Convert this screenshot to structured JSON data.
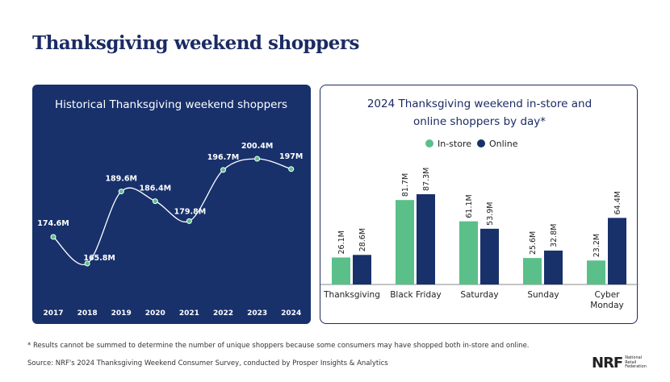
{
  "title": "Thanksgiving weekend shoppers",
  "chart_data": [
    {
      "type": "line",
      "title": "Historical Thanksgiving weekend shoppers",
      "categories": [
        "2017",
        "2018",
        "2019",
        "2020",
        "2021",
        "2022",
        "2023",
        "2024"
      ],
      "values": [
        174.6,
        165.8,
        189.6,
        186.4,
        179.8,
        196.7,
        200.4,
        197
      ],
      "data_labels": [
        "174.6M",
        "165.8M",
        "189.6M",
        "186.4M",
        "179.8M",
        "196.7M",
        "200.4M",
        "197M"
      ],
      "grid": false,
      "colors": {
        "background": "#18316b",
        "line": "#ffffff",
        "marker": "#5bbf8a"
      }
    },
    {
      "type": "bar",
      "title": "2024 Thanksgiving weekend in-store and online shoppers by day*",
      "categories": [
        "Thanksgiving",
        "Black Friday",
        "Saturday",
        "Sunday",
        "Cyber Monday"
      ],
      "series": [
        {
          "name": "In-store",
          "values": [
            26.1,
            81.7,
            61.1,
            25.6,
            23.2
          ],
          "labels": [
            "26.1M",
            "81.7M",
            "61.1M",
            "25.6M",
            "23.2M"
          ],
          "color": "#5bbf8a"
        },
        {
          "name": "Online",
          "values": [
            28.6,
            87.3,
            53.9,
            32.8,
            64.4
          ],
          "labels": [
            "28.6M",
            "87.3M",
            "53.9M",
            "32.8M",
            "64.4M"
          ],
          "color": "#18316b"
        }
      ],
      "legend": "top",
      "grid": false
    }
  ],
  "footnote": "* Results cannot be summed to determine the number of unique shoppers because some consumers may have shopped both in-store and online.",
  "source": "Source: NRF's 2024 Thanksgiving Weekend Consumer Survey, conducted by Prosper Insights & Analytics",
  "logo": {
    "mark": "NRF",
    "text": [
      "National",
      "Retail",
      "Federation"
    ]
  }
}
